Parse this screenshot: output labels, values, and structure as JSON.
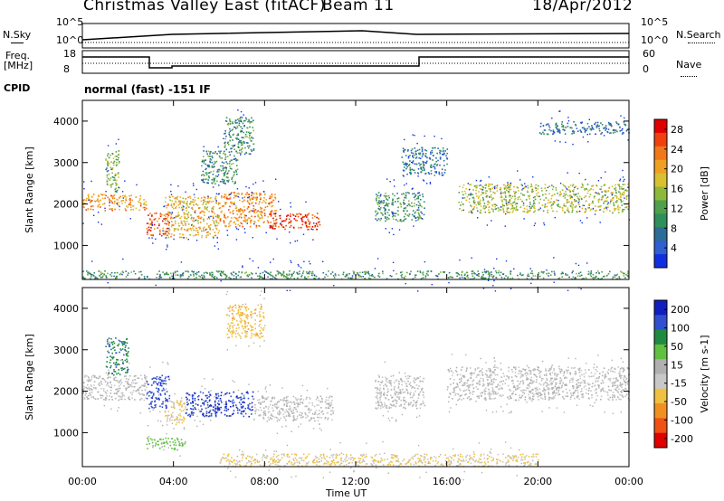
{
  "header": {
    "title": "Christmas Valley East (fitACF)",
    "beam": "Beam 11",
    "date": "18/Apr/2012"
  },
  "strips": {
    "nsky_label": "N.Sky",
    "nsearch_label": "N.Search",
    "nsky_ticks": [
      "10^5",
      "10^0"
    ],
    "nsearch_ticks": [
      "10^5",
      "10^0"
    ],
    "freq_label": "Freq.",
    "freq_unit": "[MHz]",
    "freq_ticks": [
      "18",
      "8"
    ],
    "nave_label": "Nave",
    "nave_ticks": [
      "60",
      "0"
    ],
    "cpid_label": "CPID",
    "cpid_text": "normal (fast) -151 IF"
  },
  "colors": {
    "power_scale": [
      "#1030e0",
      "#2f5fd0",
      "#2d6c96",
      "#2f8f5a",
      "#4fa04a",
      "#8db83a",
      "#d8c030",
      "#f0a020",
      "#f07818",
      "#f04010",
      "#e00000"
    ],
    "velocity_scale": [
      "#1020c0",
      "#3050d0",
      "#208a40",
      "#60c040",
      "#b0b0b0",
      "#c8c8c8",
      "#f0c040",
      "#f09020",
      "#f05010",
      "#e00000"
    ]
  },
  "chart_data": [
    {
      "type": "heatmap",
      "name": "power",
      "ylabel": "Slant Range [km]",
      "xlabel": "Time UT",
      "x_ticks": [
        "00:00",
        "04:00",
        "08:00",
        "12:00",
        "16:00",
        "20:00",
        "00:00"
      ],
      "xlim": [
        0,
        24
      ],
      "y_ticks": [
        "1000",
        "2000",
        "3000",
        "4000"
      ],
      "ylim": [
        180,
        4500
      ],
      "colorbar_label": "Power [dB]",
      "colorbar_ticks": [
        "4",
        "8",
        "12",
        "16",
        "20",
        "24",
        "28"
      ],
      "colorbar_range": [
        0,
        30
      ],
      "bands": [
        {
          "t": [
            0.0,
            2.8
          ],
          "r": [
            1850,
            2250
          ],
          "level": 22
        },
        {
          "t": [
            1.0,
            1.6
          ],
          "r": [
            2300,
            3300
          ],
          "level": 14
        },
        {
          "t": [
            2.8,
            3.8
          ],
          "r": [
            1250,
            1800
          ],
          "level": 26
        },
        {
          "t": [
            3.6,
            6.0
          ],
          "r": [
            1200,
            2200
          ],
          "level": 20
        },
        {
          "t": [
            6.0,
            8.5
          ],
          "r": [
            1450,
            2300
          ],
          "level": 22
        },
        {
          "t": [
            8.2,
            10.4
          ],
          "r": [
            1400,
            1800
          ],
          "level": 28
        },
        {
          "t": [
            5.2,
            6.8
          ],
          "r": [
            2500,
            3300
          ],
          "level": 10
        },
        {
          "t": [
            6.2,
            7.5
          ],
          "r": [
            3200,
            4100
          ],
          "level": 10
        },
        {
          "t": [
            12.8,
            15.0
          ],
          "r": [
            1600,
            2300
          ],
          "level": 10
        },
        {
          "t": [
            14.0,
            16.0
          ],
          "r": [
            2700,
            3400
          ],
          "level": 6
        },
        {
          "t": [
            16.5,
            24.0
          ],
          "r": [
            1800,
            2500
          ],
          "level": 16
        },
        {
          "t": [
            20.0,
            24.0
          ],
          "r": [
            3700,
            4000
          ],
          "level": 6
        },
        {
          "t": [
            0.0,
            24.0
          ],
          "r": [
            200,
            400
          ],
          "level": 10
        }
      ]
    },
    {
      "type": "heatmap",
      "name": "velocity",
      "ylabel": "Slant Range [km]",
      "xlabel": "Time UT",
      "x_ticks": [
        "00:00",
        "04:00",
        "08:00",
        "12:00",
        "16:00",
        "20:00",
        "00:00"
      ],
      "xlim": [
        0,
        24
      ],
      "y_ticks": [
        "1000",
        "2000",
        "3000",
        "4000"
      ],
      "ylim": [
        180,
        4500
      ],
      "colorbar_label": "Velocity [m s-1]",
      "colorbar_ticks": [
        "200",
        "100",
        "50",
        "15",
        "-15",
        "-50",
        "-100",
        "-200"
      ],
      "colorbar_range": [
        -250,
        250
      ],
      "bands": [
        {
          "t": [
            0.0,
            2.8
          ],
          "r": [
            1800,
            2400
          ],
          "level": 0
        },
        {
          "t": [
            1.0,
            2.0
          ],
          "r": [
            2400,
            3300
          ],
          "level": 150
        },
        {
          "t": [
            2.8,
            3.8
          ],
          "r": [
            1600,
            2400
          ],
          "level": 200
        },
        {
          "t": [
            3.6,
            4.5
          ],
          "r": [
            1200,
            1800
          ],
          "level": -60
        },
        {
          "t": [
            4.5,
            7.5
          ],
          "r": [
            1400,
            2000
          ],
          "level": 220
        },
        {
          "t": [
            7.5,
            11.0
          ],
          "r": [
            1300,
            1900
          ],
          "level": 0
        },
        {
          "t": [
            6.3,
            8.0
          ],
          "r": [
            3300,
            4100
          ],
          "level": -90
        },
        {
          "t": [
            2.8,
            4.5
          ],
          "r": [
            600,
            900
          ],
          "level": 80
        },
        {
          "t": [
            12.8,
            15.0
          ],
          "r": [
            1600,
            2400
          ],
          "level": 0
        },
        {
          "t": [
            16.0,
            24.0
          ],
          "r": [
            1800,
            2600
          ],
          "level": 0
        },
        {
          "t": [
            6.0,
            20.0
          ],
          "r": [
            200,
            500
          ],
          "level": -60
        }
      ]
    }
  ]
}
